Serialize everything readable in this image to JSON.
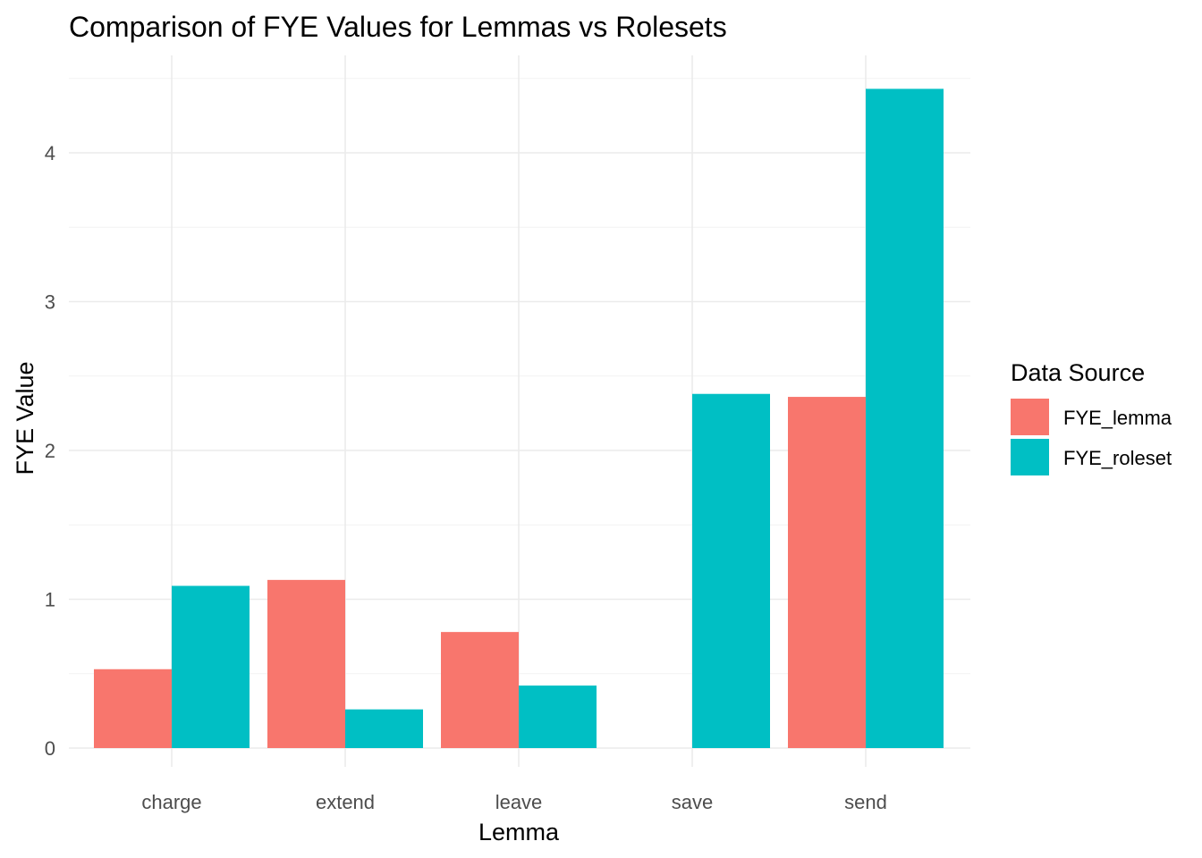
{
  "chart_data": {
    "type": "bar",
    "title": "Comparison of FYE Values for Lemmas vs Rolesets",
    "xlabel": "Lemma",
    "ylabel": "FYE Value",
    "categories": [
      "charge",
      "extend",
      "leave",
      "save",
      "send"
    ],
    "series": [
      {
        "name": "FYE_lemma",
        "color": "#F8766D",
        "values": [
          0.53,
          1.13,
          0.78,
          0.0,
          2.36
        ]
      },
      {
        "name": "FYE_roleset",
        "color": "#00BFC4",
        "values": [
          1.09,
          0.26,
          0.42,
          2.38,
          4.43
        ]
      }
    ],
    "ylim": [
      0,
      4.5
    ],
    "yticks": [
      "0",
      "1",
      "2",
      "3",
      "4"
    ],
    "grid": true,
    "legend": {
      "title": "Data Source",
      "position": "right"
    }
  }
}
